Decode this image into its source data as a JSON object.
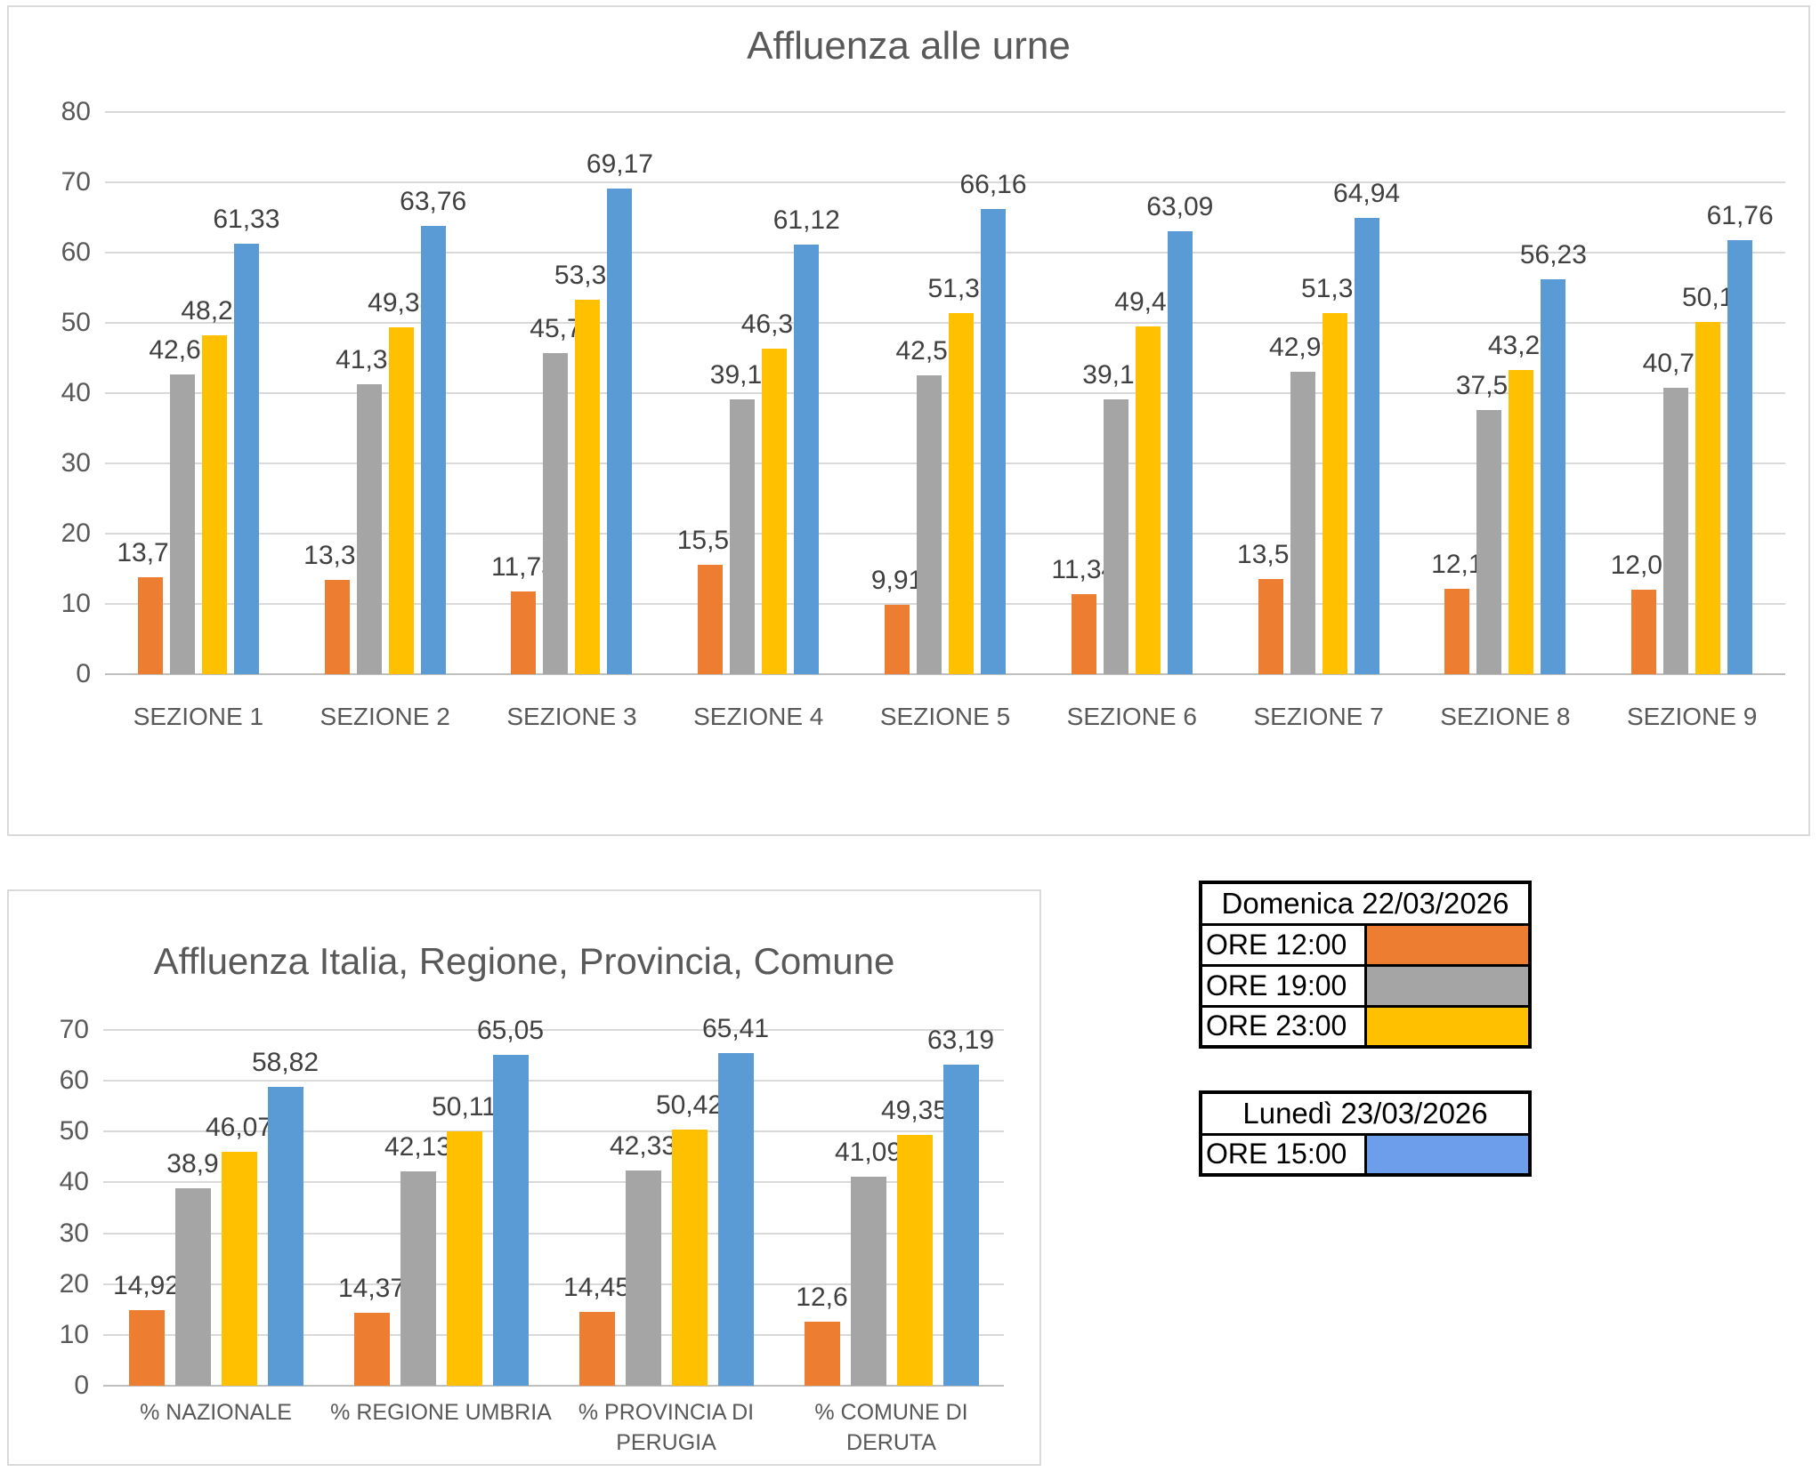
{
  "colors": {
    "orange": "#ED7D31",
    "gray": "#A5A5A5",
    "yellow": "#FFC000",
    "blue": "#5B9BD5",
    "legend_blue": "#6D9EEB",
    "gridline": "#D9D9D9",
    "axis_text": "#595959",
    "data_label": "#404040",
    "chart_border": "#D9D9D9"
  },
  "chart_data": [
    {
      "type": "bar",
      "title": "Affluenza alle urne",
      "categories": [
        "SEZIONE 1",
        "SEZIONE 2",
        "SEZIONE 3",
        "SEZIONE 4",
        "SEZIONE 5",
        "SEZIONE 6",
        "SEZIONE 7",
        "SEZIONE 8",
        "SEZIONE 9"
      ],
      "ylim": [
        0,
        80
      ],
      "yticks": [
        0,
        10,
        20,
        30,
        40,
        50,
        60,
        70,
        80
      ],
      "grid": true,
      "legend_position": "none",
      "series": [
        {
          "name": "ORE 12:00",
          "color": "#ED7D31",
          "values": [
            13.79,
            13.39,
            11.73,
            15.53,
            9.91,
            11.34,
            13.57,
            12.1,
            12.05
          ],
          "labels": [
            "13,79",
            "13,39",
            "11,73",
            "15,53",
            "9,91",
            "11,34",
            "13,57",
            "12,1",
            "12,05"
          ]
        },
        {
          "name": "ORE 19:00",
          "color": "#A5A5A5",
          "values": [
            42.61,
            41.33,
            45.7,
            39.11,
            42.53,
            39.13,
            42.99,
            37.54,
            40.73
          ],
          "labels": [
            "42,61",
            "41,33",
            "45,7",
            "39,11",
            "42,53",
            "39,13",
            "42,99",
            "37,54",
            "40,73"
          ]
        },
        {
          "name": "ORE 23:00",
          "color": "#FFC000",
          "values": [
            48.28,
            49.38,
            53.34,
            46.37,
            51.37,
            49.45,
            51.37,
            43.24,
            50.1
          ],
          "labels": [
            "48,28",
            "49,38",
            "53,34",
            "46,37",
            "51,37",
            "49,45",
            "51,37",
            "43,24",
            "50,1"
          ]
        },
        {
          "name": "ORE 15:00",
          "color": "#5B9BD5",
          "values": [
            61.33,
            63.76,
            69.17,
            61.12,
            66.16,
            63.09,
            64.94,
            56.23,
            61.76
          ],
          "labels": [
            "61,33",
            "63,76",
            "69,17",
            "61,12",
            "66,16",
            "63,09",
            "64,94",
            "56,23",
            "61,76"
          ]
        }
      ]
    },
    {
      "type": "bar",
      "title": "Affluenza Italia, Regione, Provincia, Comune",
      "categories": [
        "% NAZIONALE",
        "% REGIONE UMBRIA",
        "% PROVINCIA DI PERUGIA",
        "% COMUNE DI DERUTA"
      ],
      "ylim": [
        0,
        70
      ],
      "yticks": [
        0,
        10,
        20,
        30,
        40,
        50,
        60,
        70
      ],
      "grid": true,
      "legend_position": "none",
      "series": [
        {
          "name": "ORE 12:00",
          "color": "#ED7D31",
          "values": [
            14.92,
            14.37,
            14.45,
            12.6
          ],
          "labels": [
            "14,92",
            "14,37",
            "14,45",
            "12,6"
          ]
        },
        {
          "name": "ORE 19:00",
          "color": "#A5A5A5",
          "values": [
            38.9,
            42.13,
            42.33,
            41.09
          ],
          "labels": [
            "38,9",
            "42,13",
            "42,33",
            "41,09"
          ]
        },
        {
          "name": "ORE 23:00",
          "color": "#FFC000",
          "values": [
            46.07,
            50.11,
            50.42,
            49.35
          ],
          "labels": [
            "46,07",
            "50,11",
            "50,42",
            "49,35"
          ]
        },
        {
          "name": "ORE 15:00",
          "color": "#5B9BD5",
          "values": [
            58.82,
            65.05,
            65.41,
            63.19
          ],
          "labels": [
            "58,82",
            "65,05",
            "65,41",
            "63,19"
          ]
        }
      ]
    }
  ],
  "legend_tables": [
    {
      "header": "Domenica 22/03/2026",
      "rows": [
        {
          "label": "ORE 12:00",
          "color": "#ED7D31"
        },
        {
          "label": "ORE 19:00",
          "color": "#A5A5A5"
        },
        {
          "label": "ORE 23:00",
          "color": "#FFC000"
        }
      ]
    },
    {
      "header": "Lunedì 23/03/2026",
      "rows": [
        {
          "label": "ORE 15:00",
          "color": "#6D9EEB"
        }
      ]
    }
  ]
}
